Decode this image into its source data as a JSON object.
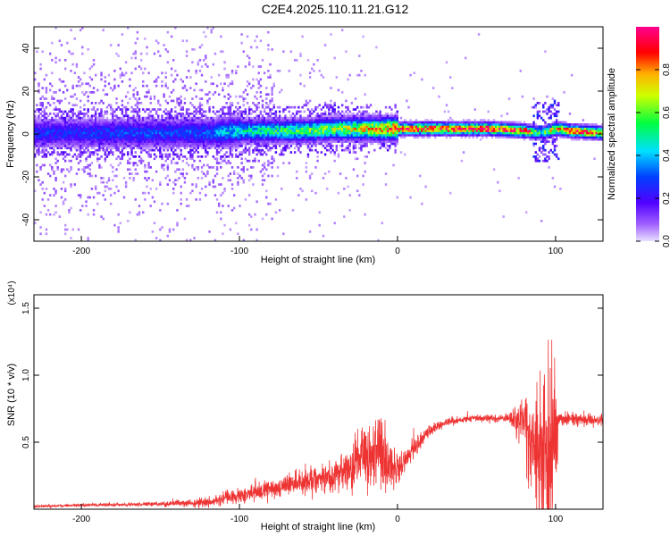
{
  "title": "C2E4.2025.110.11.21.G12",
  "colors": {
    "snr_line": "#ee3333",
    "spectrogram_low": "#7b00ff",
    "spectrogram_high": "#ff0000"
  },
  "chart_data": [
    {
      "type": "heatmap",
      "name": "spectrogram",
      "xlabel": "Height of straight line (km)",
      "ylabel": "Frequency (Hz)",
      "xlim": [
        -230,
        130
      ],
      "ylim": [
        -50,
        50
      ],
      "xticks": [
        -200,
        -100,
        0,
        100
      ],
      "xtick_labels": [
        "-200",
        "-100",
        "0",
        "100"
      ],
      "yticks": [
        -40,
        -20,
        0,
        20,
        40
      ],
      "ytick_labels": [
        "-40",
        "-20",
        "0",
        "20",
        "40"
      ],
      "colorbar": {
        "label": "Normalized spectral amplitude",
        "range": [
          0.0,
          1.0
        ],
        "ticks": [
          0.0,
          0.2,
          0.4,
          0.6,
          0.8
        ],
        "tick_labels": [
          "0.0",
          "0.2",
          "0.4",
          "0.6",
          "0.8"
        ],
        "colormap": "rainbow (violet-blue-cyan-green-yellow-red-magenta)"
      },
      "ridge": {
        "x": [
          -230,
          -120,
          -100,
          -60,
          -40,
          -20,
          0,
          20,
          60,
          80,
          90,
          100,
          110,
          130
        ],
        "center_freq": [
          0,
          0,
          1,
          1,
          2,
          2,
          2,
          2,
          2,
          1,
          0,
          2,
          1,
          0
        ],
        "peak_amplitude": [
          0.25,
          0.3,
          0.45,
          0.55,
          0.6,
          0.7,
          0.85,
          0.9,
          0.95,
          0.9,
          0.45,
          0.8,
          0.85,
          0.8
        ]
      },
      "grid": false
    },
    {
      "type": "line",
      "name": "snr",
      "xlabel": "Height of straight line (km)",
      "ylabel": "SNR (10 * v/v)",
      "y_multiplier_label": "(x10⁴)",
      "xlim": [
        -230,
        130
      ],
      "ylim": [
        0,
        1.6
      ],
      "xticks": [
        -200,
        -100,
        0,
        100
      ],
      "xtick_labels": [
        "-200",
        "-100",
        "0",
        "100"
      ],
      "yticks": [
        0.5,
        1.0,
        1.5
      ],
      "ytick_labels": [
        "0.5",
        "1.0",
        "1.5"
      ],
      "envelope": {
        "x": [
          -230,
          -200,
          -150,
          -120,
          -100,
          -80,
          -60,
          -40,
          -30,
          -20,
          -10,
          0,
          10,
          20,
          30,
          50,
          70,
          75,
          80,
          85,
          90,
          95,
          100,
          102,
          110,
          120,
          130
        ],
        "mean": [
          0.02,
          0.03,
          0.04,
          0.05,
          0.1,
          0.15,
          0.2,
          0.25,
          0.3,
          0.4,
          0.4,
          0.3,
          0.45,
          0.58,
          0.65,
          0.68,
          0.68,
          0.66,
          0.62,
          0.55,
          0.5,
          0.45,
          0.55,
          0.68,
          0.67,
          0.66,
          0.67
        ],
        "amplitude": [
          0.01,
          0.01,
          0.02,
          0.04,
          0.06,
          0.08,
          0.1,
          0.12,
          0.2,
          0.28,
          0.3,
          0.12,
          0.08,
          0.05,
          0.03,
          0.03,
          0.04,
          0.1,
          0.25,
          0.4,
          0.55,
          0.7,
          0.6,
          0.05,
          0.05,
          0.05,
          0.05
        ]
      },
      "grid": false
    }
  ]
}
